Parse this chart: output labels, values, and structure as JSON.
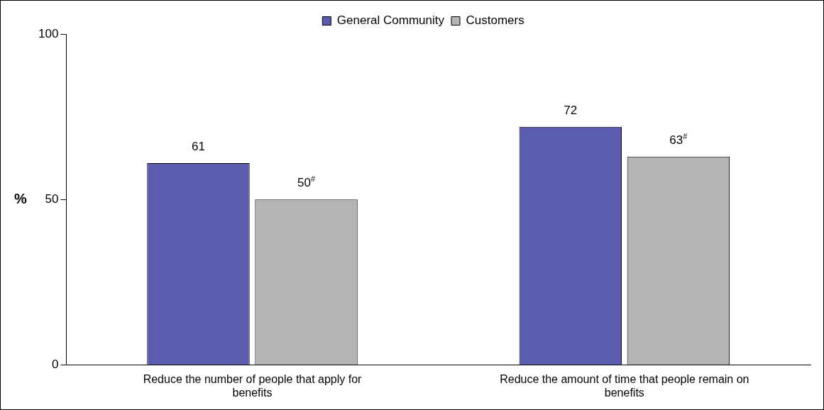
{
  "chart_data": {
    "type": "bar",
    "ylabel": "%",
    "categories": [
      "Reduce the number of people that apply for benefits",
      "Reduce the amount of time that people remain on benefits"
    ],
    "series": [
      {
        "name": "General Community",
        "color": "#5b5bb0",
        "values": [
          61,
          72
        ],
        "value_labels": [
          "61",
          "72"
        ]
      },
      {
        "name": "Customers",
        "color": "#b4b4b4",
        "values": [
          50,
          63
        ],
        "value_labels": [
          "50$^{#}$",
          "63$^{#}$"
        ]
      }
    ],
    "ylim": [
      0,
      100
    ],
    "yticks": [
      0,
      50,
      100
    ],
    "grid": false,
    "legend": "top"
  }
}
